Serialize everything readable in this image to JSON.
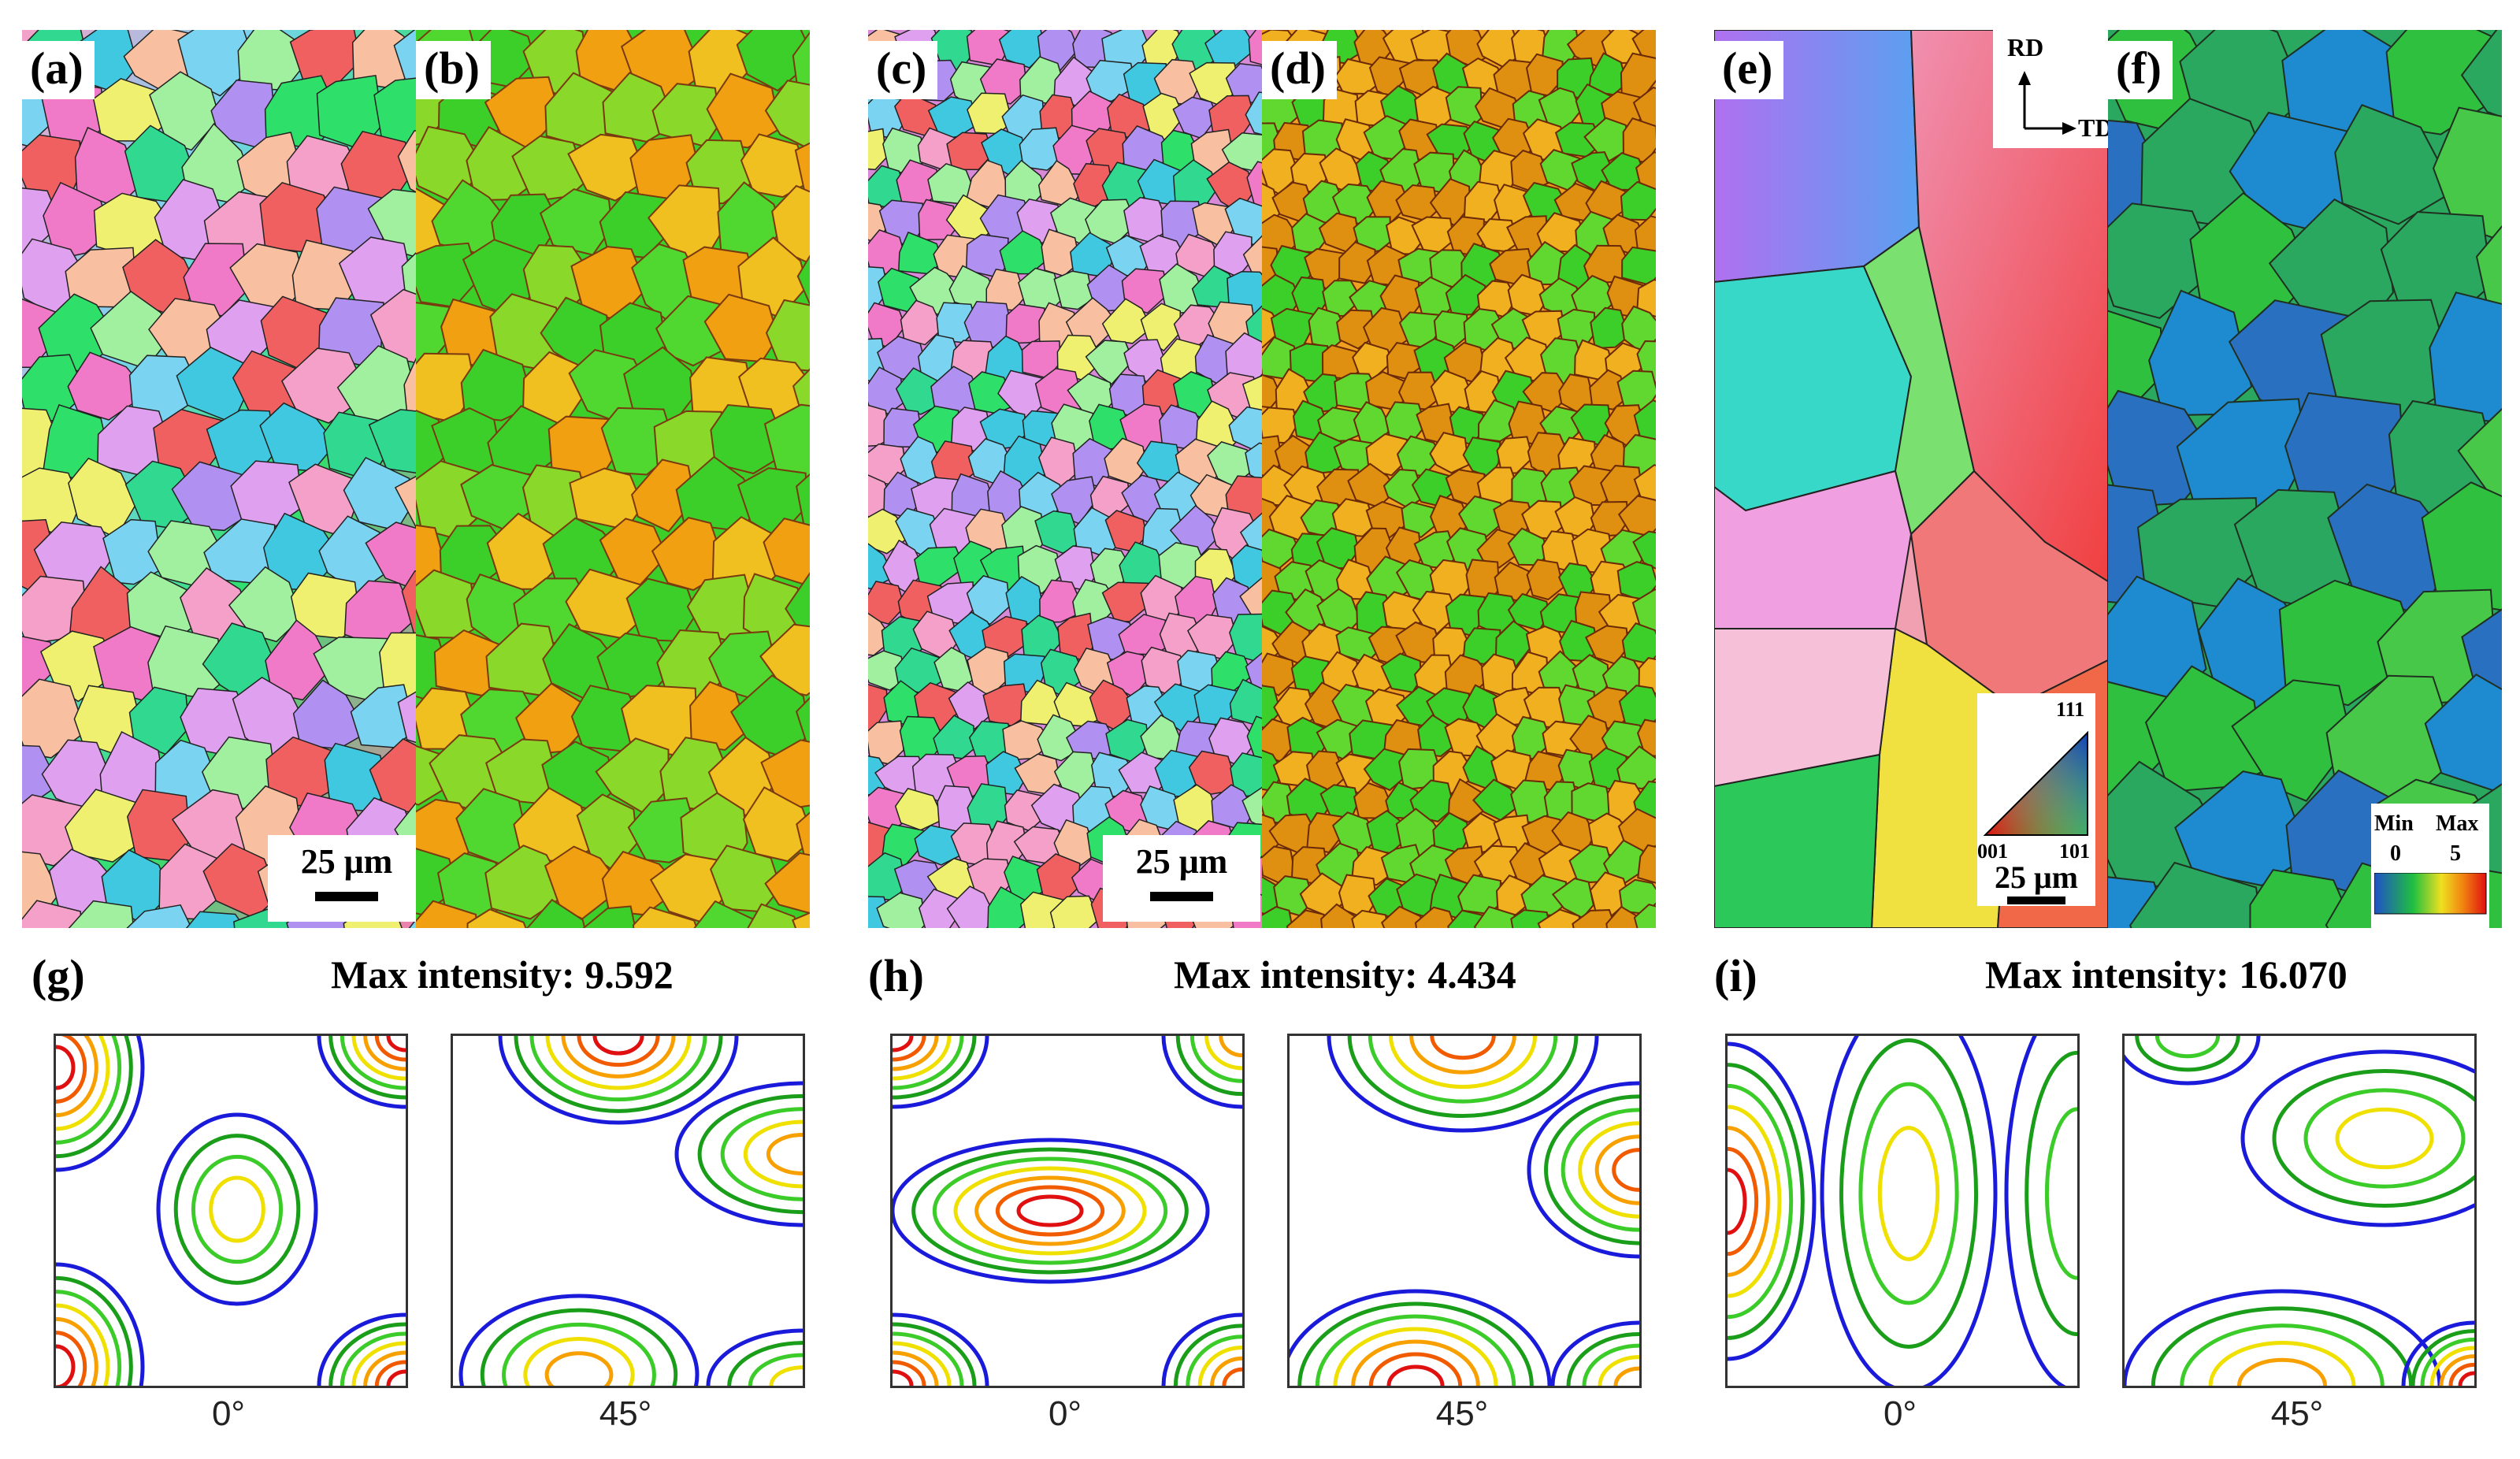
{
  "panels": {
    "a": "(a)",
    "b": "(b)",
    "c": "(c)",
    "d": "(d)",
    "e": "(e)",
    "f": "(f)",
    "g": "(g)",
    "h": "(h)",
    "i": "(i)"
  },
  "scale_bars": {
    "a": "25 μm",
    "c": "25 μm",
    "e": "25 μm"
  },
  "axes_legend": {
    "rd": "RD",
    "td": "TD"
  },
  "ipf_legend": {
    "top": "111",
    "left": "001",
    "right": "101"
  },
  "kam_legend": {
    "min_label": "Min",
    "max_label": "Max",
    "min_value": "0",
    "max_value": "5"
  },
  "max_intensity": {
    "g": "Max intensity: 9.592",
    "h": "Max intensity: 4.434",
    "i": "Max intensity: 16.070"
  },
  "odf_angles": [
    "0°",
    "45°"
  ],
  "colors": {
    "contour": [
      "#1a1adb",
      "#1a9e1a",
      "#3ccc2a",
      "#f0e000",
      "#f7a000",
      "#f25a00",
      "#e01010"
    ],
    "kam_low": "#1a50c8",
    "kam_mid": "#28d22a",
    "kam_high": "#f0a010"
  }
}
